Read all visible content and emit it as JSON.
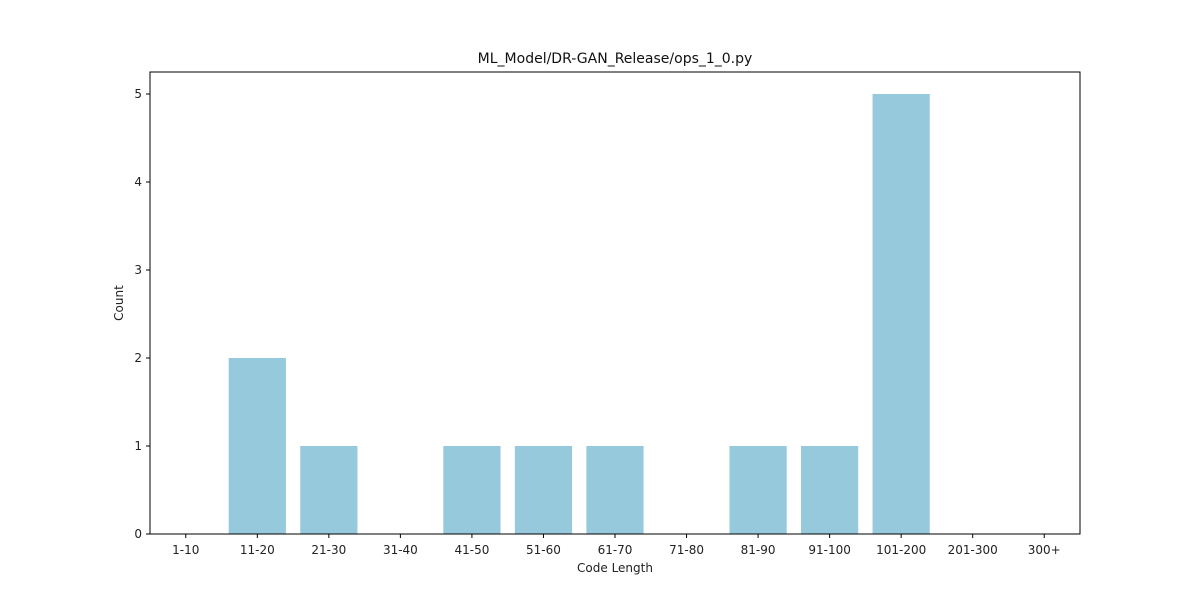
{
  "chart_data": {
    "type": "bar",
    "title": "ML_Model/DR-GAN_Release/ops_1_0.py",
    "xlabel": "Code Length",
    "ylabel": "Count",
    "categories": [
      "1-10",
      "11-20",
      "21-30",
      "31-40",
      "41-50",
      "51-60",
      "61-70",
      "71-80",
      "81-90",
      "91-100",
      "101-200",
      "201-300",
      "300+"
    ],
    "values": [
      0,
      2,
      1,
      0,
      1,
      1,
      1,
      0,
      1,
      1,
      5,
      0,
      0
    ],
    "ylim": [
      0,
      5.25
    ],
    "yticks": [
      0,
      1,
      2,
      3,
      4,
      5
    ],
    "bar_color": "#96c9dc",
    "grid": false,
    "legend": "none"
  }
}
